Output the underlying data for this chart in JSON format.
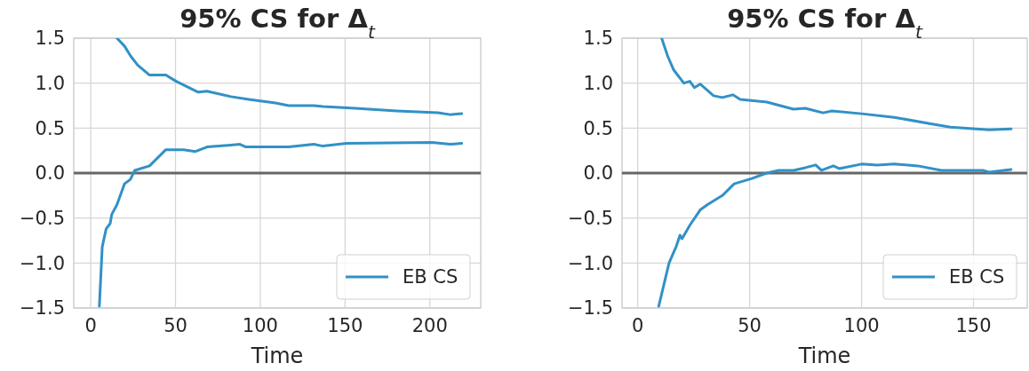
{
  "chart_data": [
    {
      "type": "line",
      "title": "95% CS for Δ$_{t}$",
      "xlabel": "Time",
      "xlim": [
        -10,
        230
      ],
      "xticks": [
        0,
        50,
        100,
        150,
        200
      ],
      "ylim": [
        -1.5,
        1.5
      ],
      "yticks": [
        {
          "value": -1.5,
          "label": "−1.5"
        },
        {
          "value": -1.0,
          "label": "−1.0"
        },
        {
          "value": -0.5,
          "label": "−0.5"
        },
        {
          "value": 0,
          "label": "0.0"
        },
        {
          "value": 0.5,
          "label": "0.5"
        },
        {
          "value": 1.0,
          "label": "1.0"
        },
        {
          "value": 1.5,
          "label": "1.5"
        }
      ],
      "grid": true,
      "legend": "bottom right",
      "ref_lines": [
        {
          "axis": "y",
          "value": 0,
          "color": "#666666"
        }
      ],
      "series": [
        {
          "name": "EB CS",
          "color": "#3191c6",
          "x": [
            15.5,
            20,
            23.6,
            27.7,
            34.7,
            44.3,
            50.4,
            63.4,
            68.6,
            82.7,
            93.2,
            108.9,
            116.8,
            131.6,
            136.9,
            156,
            180.5,
            204.8,
            211.9,
            218.8
          ],
          "values": [
            1.5,
            1.41,
            1.3,
            1.2,
            1.09,
            1.09,
            1.02,
            0.9,
            0.91,
            0.85,
            0.82,
            0.78,
            0.75,
            0.75,
            0.74,
            0.72,
            0.69,
            0.67,
            0.65,
            0.66
          ]
        },
        {
          "color": "#3191c6",
          "x": [
            5.1,
            6.8,
            9.1,
            11.5,
            12.4,
            15.5,
            19.9,
            23.4,
            26,
            34.7,
            44.3,
            54.8,
            61.8,
            68.6,
            88,
            91.5,
            116.8,
            131.6,
            136.9,
            150.8,
            201.4,
            211.9,
            218.8
          ],
          "values": [
            -1.48,
            -0.82,
            -0.62,
            -0.56,
            -0.46,
            -0.35,
            -0.12,
            -0.07,
            0.03,
            0.08,
            0.26,
            0.26,
            0.24,
            0.29,
            0.32,
            0.29,
            0.29,
            0.32,
            0.3,
            0.33,
            0.34,
            0.32,
            0.33
          ]
        }
      ]
    },
    {
      "type": "line",
      "title": "95% CS for Δ$_{t}$",
      "xlabel": "Time",
      "xlim": [
        -7,
        174
      ],
      "xticks": [
        0,
        50,
        100,
        150
      ],
      "ylim": [
        -1.5,
        1.5
      ],
      "yticks": [
        {
          "value": -1.5,
          "label": "−1.5"
        },
        {
          "value": -1.0,
          "label": "−1.0"
        },
        {
          "value": -0.5,
          "label": "−0.5"
        },
        {
          "value": 0,
          "label": "0.0"
        },
        {
          "value": 0.5,
          "label": "0.5"
        },
        {
          "value": 1.0,
          "label": "1.0"
        },
        {
          "value": 1.5,
          "label": "1.5"
        }
      ],
      "grid": true,
      "legend": "bottom right",
      "ref_lines": [
        {
          "axis": "y",
          "value": 0,
          "color": "#666666"
        }
      ],
      "series": [
        {
          "name": "EB CS",
          "color": "#3191c6",
          "x": [
            10.7,
            13.4,
            16,
            20.6,
            23.3,
            25.3,
            27.9,
            33.9,
            37.8,
            42.5,
            45.8,
            57.7,
            69.6,
            74.9,
            82.8,
            86.8,
            100,
            114.6,
            130.4,
            139.7,
            156.9,
            166.8
          ],
          "values": [
            1.5,
            1.3,
            1.15,
            1.0,
            1.02,
            0.95,
            0.99,
            0.86,
            0.84,
            0.87,
            0.82,
            0.79,
            0.71,
            0.72,
            0.67,
            0.69,
            0.66,
            0.62,
            0.55,
            0.51,
            0.48,
            0.49
          ]
        },
        {
          "color": "#3191c6",
          "x": [
            9.4,
            14,
            17.3,
            18.9,
            19.8,
            23.3,
            27.9,
            31.2,
            37.8,
            43.1,
            51,
            57.6,
            63,
            69.6,
            74.9,
            79.5,
            82.1,
            87.4,
            90,
            100,
            107,
            114.6,
            125.1,
            135.7,
            154.2,
            156.9,
            166.8
          ],
          "values": [
            -1.48,
            -1.0,
            -0.81,
            -0.69,
            -0.73,
            -0.58,
            -0.41,
            -0.35,
            -0.25,
            -0.12,
            -0.06,
            0,
            0.03,
            0.03,
            0.06,
            0.09,
            0.03,
            0.08,
            0.05,
            0.1,
            0.09,
            0.1,
            0.08,
            0.03,
            0.03,
            0.01,
            0.04
          ]
        }
      ]
    }
  ]
}
